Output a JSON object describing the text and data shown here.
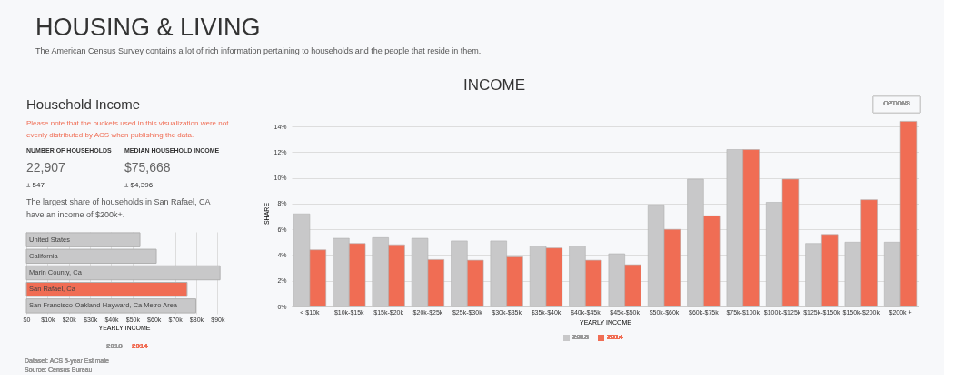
{
  "chart_data": [
    {
      "type": "other",
      "title": "HOUSING & LIVING",
      "subtitle": "The American Census Survey contains a lot of rich information pertaining to households and the people that reside in them."
    },
    {
      "type": "other",
      "title": "Household Income",
      "annotations": [
        "Please note that the buckets used in this visualization were not evenly distributed by ACS when publishing the data.",
        "NUMBER OF HOUSEHOLDS",
        "22,907",
        "± 547",
        "MEDIAN HOUSEHOLD INCOME",
        "$75,668",
        "± $4,396",
        "The largest share of households in San Rafael, CA have an income of $200k+."
      ]
    },
    {
      "type": "bar",
      "orientation": "horizontal",
      "xlabel": "YEARLY INCOME",
      "categories": [
        "United States",
        "California",
        "Marin County, Ca",
        "San Rafael, Ca",
        "San Francisco-Oakland-Hayward, Ca Metro Area"
      ],
      "values": [
        53500,
        61200,
        91200,
        75700,
        79800
      ],
      "colors": [
        "#c8c8c9",
        "#c8c8c9",
        "#c8c8c9",
        "#f06d54",
        "#c8c8c9"
      ],
      "xlim": [
        0,
        92000
      ],
      "xticks": [
        {
          "value": 0,
          "label": "$0"
        },
        {
          "value": 10000,
          "label": "$10k"
        },
        {
          "value": 20000,
          "label": "$20k"
        },
        {
          "value": 30000,
          "label": "$30k"
        },
        {
          "value": 40000,
          "label": "$40k"
        },
        {
          "value": 50000,
          "label": "$50k"
        },
        {
          "value": 60000,
          "label": "$60k"
        },
        {
          "value": 70000,
          "label": "$70k"
        },
        {
          "value": 80000,
          "label": "$80k"
        },
        {
          "value": 90000,
          "label": "$90k"
        }
      ],
      "grid": "x",
      "annotations": [
        "2013",
        "2014",
        "Dataset: ACS 5-year Estimate",
        "Source: Census Bureau"
      ]
    },
    {
      "type": "bar",
      "title": "INCOME",
      "xlabel": "YEARLY INCOME",
      "ylabel": "SHARE",
      "categories": [
        "< $10k",
        "$10k-$15k",
        "$15k-$20k",
        "$20k-$25k",
        "$25k-$30k",
        "$30k-$35k",
        "$35k-$40k",
        "$40k-$45k",
        "$45k-$50k",
        "$50k-$60k",
        "$60k-$75k",
        "$75k-$100k",
        "$100k-$125k",
        "$125k-$150k",
        "$150k-$200k",
        "$200k +"
      ],
      "series": [
        {
          "name": "2013",
          "color": "#c8c8c9",
          "values": [
            7.2,
            5.3,
            5.35,
            5.3,
            5.1,
            5.1,
            4.7,
            4.7,
            4.1,
            7.9,
            9.9,
            12.2,
            8.1,
            4.9,
            5.0,
            5.0
          ]
        },
        {
          "name": "2014",
          "color": "#f06d54",
          "values": [
            4.4,
            4.9,
            4.8,
            3.65,
            3.6,
            3.85,
            4.55,
            3.6,
            3.25,
            6.0,
            7.05,
            12.2,
            9.9,
            5.6,
            8.3,
            14.4
          ]
        }
      ],
      "ylim": [
        0,
        14.5
      ],
      "yticks": [
        {
          "value": 0,
          "label": "0%"
        },
        {
          "value": 2,
          "label": "2%"
        },
        {
          "value": 4,
          "label": "4%"
        },
        {
          "value": 6,
          "label": "6%"
        },
        {
          "value": 8,
          "label": "8%"
        },
        {
          "value": 10,
          "label": "10%"
        },
        {
          "value": 12,
          "label": "12%"
        },
        {
          "value": 14,
          "label": "14%"
        }
      ],
      "grid": "y",
      "legend": "bottom",
      "annotations": [
        "OPTIONS"
      ]
    }
  ]
}
